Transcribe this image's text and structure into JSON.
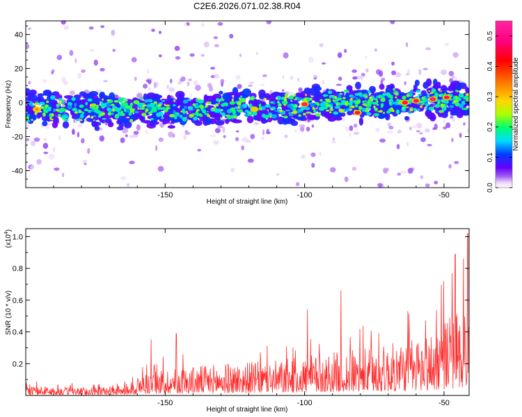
{
  "chart_data": [
    {
      "type": "heatmap",
      "title": "C2E6.2026.071.02.38.R04",
      "xlabel": "Height of straight line (km)",
      "ylabel": "Frequency (Hz)",
      "xlim": [
        -200,
        -41
      ],
      "ylim": [
        -50,
        48
      ],
      "xticks": [
        -150,
        -100,
        -50
      ],
      "yticks": [
        -40,
        -20,
        0,
        20,
        40
      ],
      "xtick_labels": [
        "-150",
        "-100",
        "-50"
      ],
      "ytick_labels": [
        "-40",
        "-20",
        "0",
        "20",
        "40"
      ],
      "band_center": {
        "x": [
          -200,
          -150,
          -120,
          -100,
          -70,
          -41
        ],
        "y": [
          -4,
          -4,
          -3,
          -1,
          0,
          2
        ]
      },
      "band_halfwidth_hz": 11,
      "hotspots": [
        {
          "x": -100,
          "y": -1,
          "amp": 0.55
        },
        {
          "x": -81,
          "y": -6,
          "amp": 0.5
        },
        {
          "x": -64,
          "y": 0,
          "amp": 0.52
        },
        {
          "x": -60,
          "y": 1,
          "amp": 0.5
        },
        {
          "x": -54,
          "y": 2,
          "amp": 0.55
        },
        {
          "x": -49,
          "y": 3,
          "amp": 0.5
        },
        {
          "x": -196,
          "y": -4,
          "amp": 0.35
        },
        {
          "x": -118,
          "y": -4,
          "amp": 0.3
        }
      ],
      "colorbar": {
        "label": "Normalized spectral amplitude",
        "range": [
          0,
          0.55
        ],
        "ticks": [
          0.0,
          0.1,
          0.2,
          0.3,
          0.4,
          0.5
        ],
        "tick_labels": [
          "0.0",
          "0.1",
          "0.2",
          "0.3",
          "0.4",
          "0.5"
        ]
      }
    },
    {
      "type": "line",
      "xlabel": "Height of straight line (km)",
      "ylabel": "SNR (10 * v/v)",
      "scale_label": "(x10",
      "scale_exponent": "4",
      "xlim": [
        -200,
        -41
      ],
      "ylim": [
        0,
        1.05
      ],
      "xticks": [
        -150,
        -100,
        -50
      ],
      "yticks": [
        0.2,
        0.4,
        0.6,
        0.8,
        1.0
      ],
      "xtick_labels": [
        "-150",
        "-100",
        "-50"
      ],
      "ytick_labels": [
        "0.2",
        "0.4",
        "0.6",
        "0.8",
        "1.0"
      ],
      "color": "#ff2b2b",
      "envelope": {
        "x": [
          -200,
          -178,
          -165,
          -158,
          -150,
          -130,
          -110,
          -90,
          -70,
          -55,
          -48,
          -41
        ],
        "y": [
          0.06,
          0.05,
          0.06,
          0.14,
          0.17,
          0.2,
          0.22,
          0.27,
          0.32,
          0.4,
          0.52,
          0.6
        ]
      },
      "peaks": [
        {
          "x": -155,
          "y": 0.35
        },
        {
          "x": -146,
          "y": 0.39
        },
        {
          "x": -99,
          "y": 0.54
        },
        {
          "x": -87,
          "y": 0.66
        },
        {
          "x": -63,
          "y": 0.53
        },
        {
          "x": -46,
          "y": 0.89
        },
        {
          "x": -43,
          "y": 0.86
        },
        {
          "x": -41.5,
          "y": 1.02
        }
      ]
    }
  ]
}
